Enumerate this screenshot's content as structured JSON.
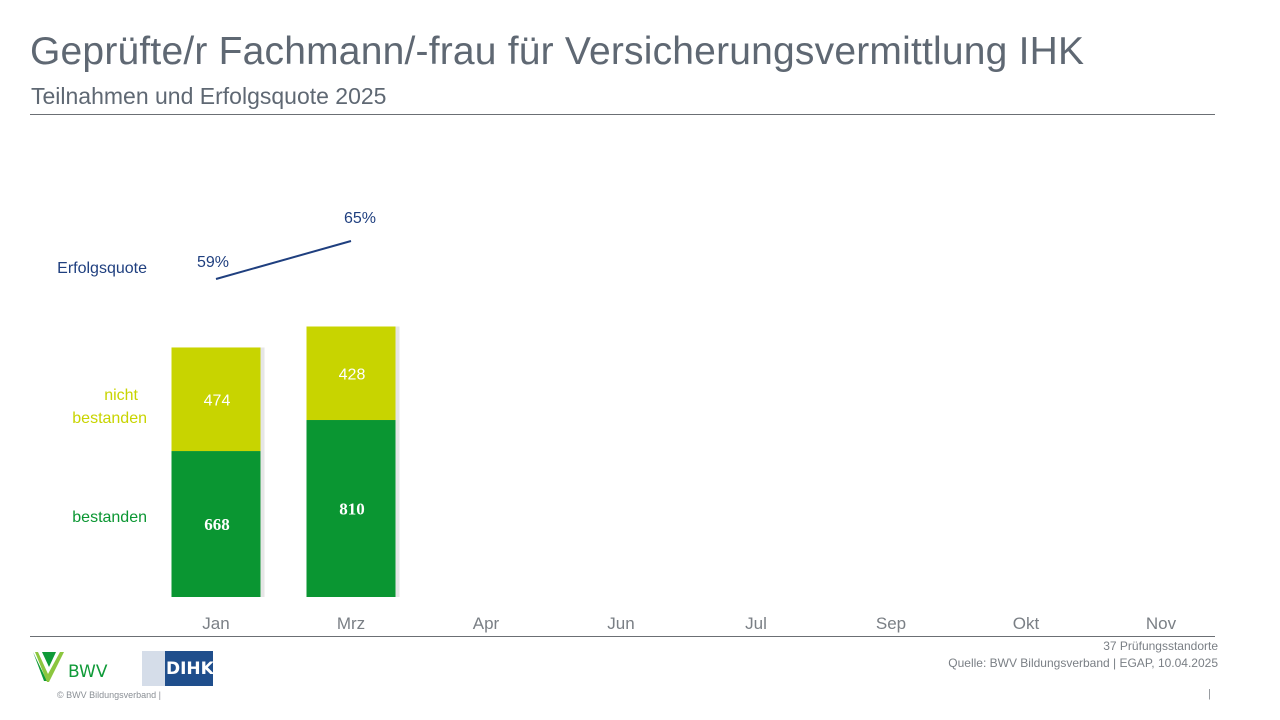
{
  "header": {
    "title": "Geprüfte/r Fachmann/-frau für Versicherungsvermittlung IHK",
    "subtitle": "Teilnahmen und Erfolgsquote 2025"
  },
  "chart_data": {
    "type": "bar",
    "stacked": true,
    "categories": [
      "Jan",
      "Mrz",
      "Apr",
      "Jun",
      "Jul",
      "Sep",
      "Okt",
      "Nov"
    ],
    "series": [
      {
        "name": "bestanden",
        "values": [
          668,
          810,
          null,
          null,
          null,
          null,
          null,
          null
        ],
        "color": "#0a9632"
      },
      {
        "name": "nicht bestanden",
        "values": [
          474,
          428,
          null,
          null,
          null,
          null,
          null,
          null
        ],
        "color": "#c8d400"
      }
    ],
    "line": {
      "name": "Erfolgsquote",
      "values": [
        59,
        65,
        null,
        null,
        null,
        null,
        null,
        null
      ],
      "labels": [
        "59%",
        "65%",
        "",
        "",
        "",
        "",
        "",
        ""
      ],
      "color": "#1f3f7f"
    },
    "legend_labels": {
      "line": "Erfolgsquote",
      "nicht_bestanden": [
        "nicht",
        "bestanden"
      ],
      "bestanden": "bestanden"
    },
    "ylim": [
      0,
      1400
    ],
    "grid": false,
    "legend": "left"
  },
  "footer": {
    "locations": "37 Prüfungsstandorte",
    "source": "Quelle: BWV Bildungsverband | EGAP, 10.04.2025",
    "copyright": "© BWV Bildungsverband |",
    "page_separator": "|",
    "logo_bwv": "BWV",
    "logo_dihk": "DIHK"
  }
}
